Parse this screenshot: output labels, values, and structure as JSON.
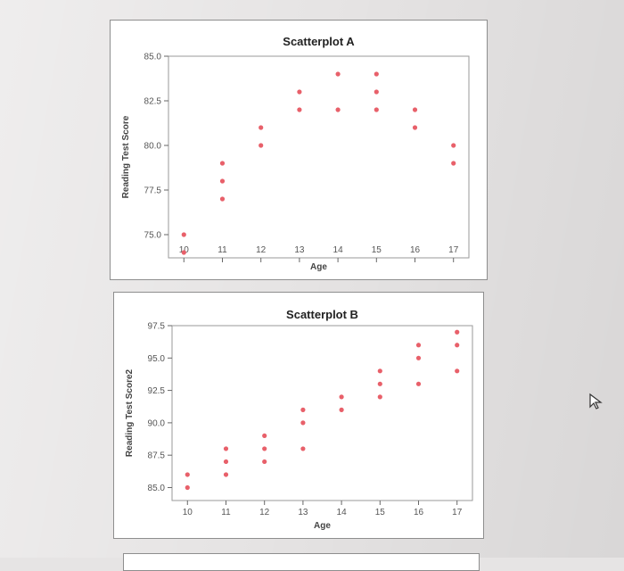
{
  "chart_data": [
    {
      "type": "scatter",
      "title": "Scatterplot A",
      "xlabel": "Age",
      "ylabel": "Reading Test Score",
      "xlim": [
        9.6,
        17.4
      ],
      "ylim": [
        73.7,
        85.0
      ],
      "xticks": [
        "10",
        "11",
        "12",
        "13",
        "14",
        "15",
        "16",
        "17"
      ],
      "yticks": [
        "85.0",
        "82.5",
        "80.0",
        "77.5",
        "75.0"
      ],
      "grid": false,
      "marker_color": "#e8606a",
      "points": [
        {
          "x": 10,
          "y": 75.0
        },
        {
          "x": 10,
          "y": 74.0
        },
        {
          "x": 11,
          "y": 79.0
        },
        {
          "x": 11,
          "y": 78.0
        },
        {
          "x": 11,
          "y": 77.0
        },
        {
          "x": 12,
          "y": 81.0
        },
        {
          "x": 12,
          "y": 80.0
        },
        {
          "x": 13,
          "y": 83.0
        },
        {
          "x": 13,
          "y": 82.0
        },
        {
          "x": 14,
          "y": 84.0
        },
        {
          "x": 14,
          "y": 82.0
        },
        {
          "x": 15,
          "y": 84.0
        },
        {
          "x": 15,
          "y": 83.0
        },
        {
          "x": 15,
          "y": 82.0
        },
        {
          "x": 16,
          "y": 82.0
        },
        {
          "x": 16,
          "y": 81.0
        },
        {
          "x": 17,
          "y": 80.0
        },
        {
          "x": 17,
          "y": 79.0
        }
      ]
    },
    {
      "type": "scatter",
      "title": "Scatterplot B",
      "xlabel": "Age",
      "ylabel": "Reading Test Score2",
      "xlim": [
        9.6,
        17.4
      ],
      "ylim": [
        84.0,
        97.5
      ],
      "xticks": [
        "10",
        "11",
        "12",
        "13",
        "14",
        "15",
        "16",
        "17"
      ],
      "yticks": [
        "97.5",
        "95.0",
        "92.5",
        "90.0",
        "87.5",
        "85.0"
      ],
      "grid": false,
      "marker_color": "#e8606a",
      "points": [
        {
          "x": 10,
          "y": 86.0
        },
        {
          "x": 10,
          "y": 85.0
        },
        {
          "x": 11,
          "y": 88.0
        },
        {
          "x": 11,
          "y": 87.0
        },
        {
          "x": 11,
          "y": 86.0
        },
        {
          "x": 12,
          "y": 89.0
        },
        {
          "x": 12,
          "y": 88.0
        },
        {
          "x": 12,
          "y": 87.0
        },
        {
          "x": 13,
          "y": 91.0
        },
        {
          "x": 13,
          "y": 90.0
        },
        {
          "x": 13,
          "y": 88.0
        },
        {
          "x": 14,
          "y": 92.0
        },
        {
          "x": 14,
          "y": 91.0
        },
        {
          "x": 15,
          "y": 94.0
        },
        {
          "x": 15,
          "y": 93.0
        },
        {
          "x": 15,
          "y": 92.0
        },
        {
          "x": 16,
          "y": 96.0
        },
        {
          "x": 16,
          "y": 95.0
        },
        {
          "x": 16,
          "y": 93.0
        },
        {
          "x": 17,
          "y": 97.0
        },
        {
          "x": 17,
          "y": 96.0
        },
        {
          "x": 17,
          "y": 94.0
        }
      ]
    }
  ]
}
